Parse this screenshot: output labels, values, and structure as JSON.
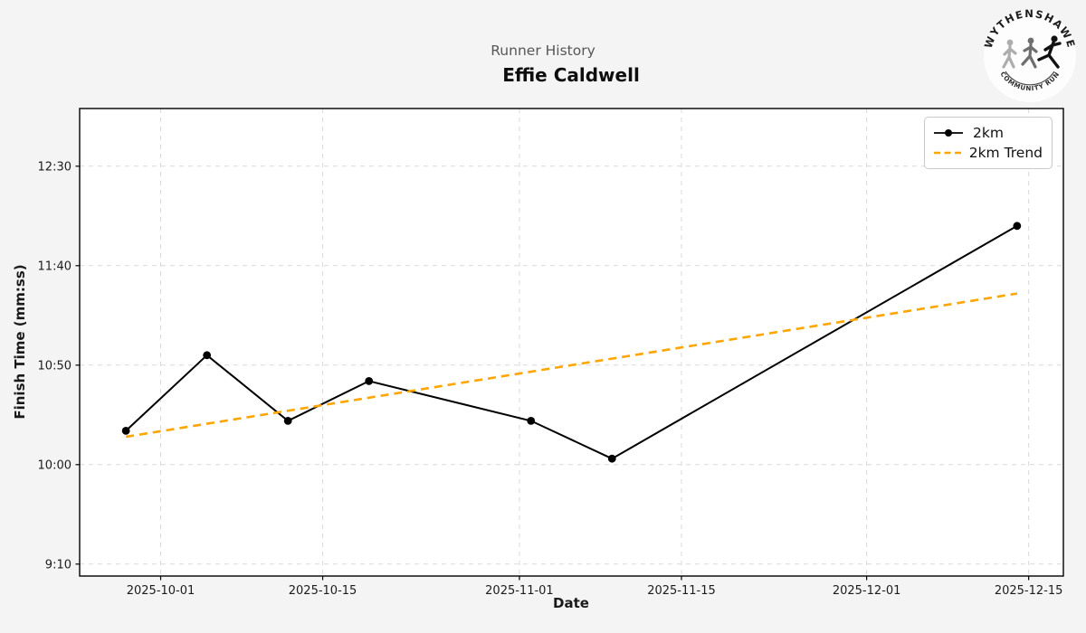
{
  "header": {
    "suptitle": "Runner History",
    "title": "Effie Caldwell"
  },
  "logo": {
    "top_text": "WYTHENSHAWE",
    "bottom_text": "COMMUNITY RUN"
  },
  "chart_data": {
    "type": "line",
    "subtitle": "Runner History",
    "title": "Effie Caldwell",
    "xlabel": "Date",
    "ylabel": "Finish Time (mm:ss)",
    "xlim": [
      "2025-09-24",
      "2025-12-18"
    ],
    "ylim_seconds": [
      544,
      779
    ],
    "x_ticks": [
      "2025-10-01",
      "2025-10-15",
      "2025-11-01",
      "2025-11-15",
      "2025-12-01",
      "2025-12-15"
    ],
    "y_ticks": [
      "9:10",
      "10:00",
      "10:50",
      "11:40",
      "12:30"
    ],
    "grid": true,
    "legend_position": "upper right",
    "series": [
      {
        "name": "2km",
        "style": "solid-markers",
        "color": "#000000",
        "points": [
          {
            "date": "2025-09-28",
            "time": "10:17"
          },
          {
            "date": "2025-10-05",
            "time": "10:55"
          },
          {
            "date": "2025-10-12",
            "time": "10:22"
          },
          {
            "date": "2025-10-19",
            "time": "10:42"
          },
          {
            "date": "2025-11-02",
            "time": "10:22"
          },
          {
            "date": "2025-11-09",
            "time": "10:03"
          },
          {
            "date": "2025-12-14",
            "time": "12:00"
          }
        ]
      },
      {
        "name": "2km Trend",
        "style": "dashed",
        "color": "#FFA500",
        "points": [
          {
            "date": "2025-09-28",
            "time": "10:14"
          },
          {
            "date": "2025-12-14",
            "time": "11:26"
          }
        ]
      }
    ],
    "colors": {
      "figure_bg": "#f4f4f4",
      "plot_bg": "#ffffff",
      "grid": "#d9d9d9",
      "spine": "#000000",
      "tick_label": "#1c1c1c"
    }
  }
}
